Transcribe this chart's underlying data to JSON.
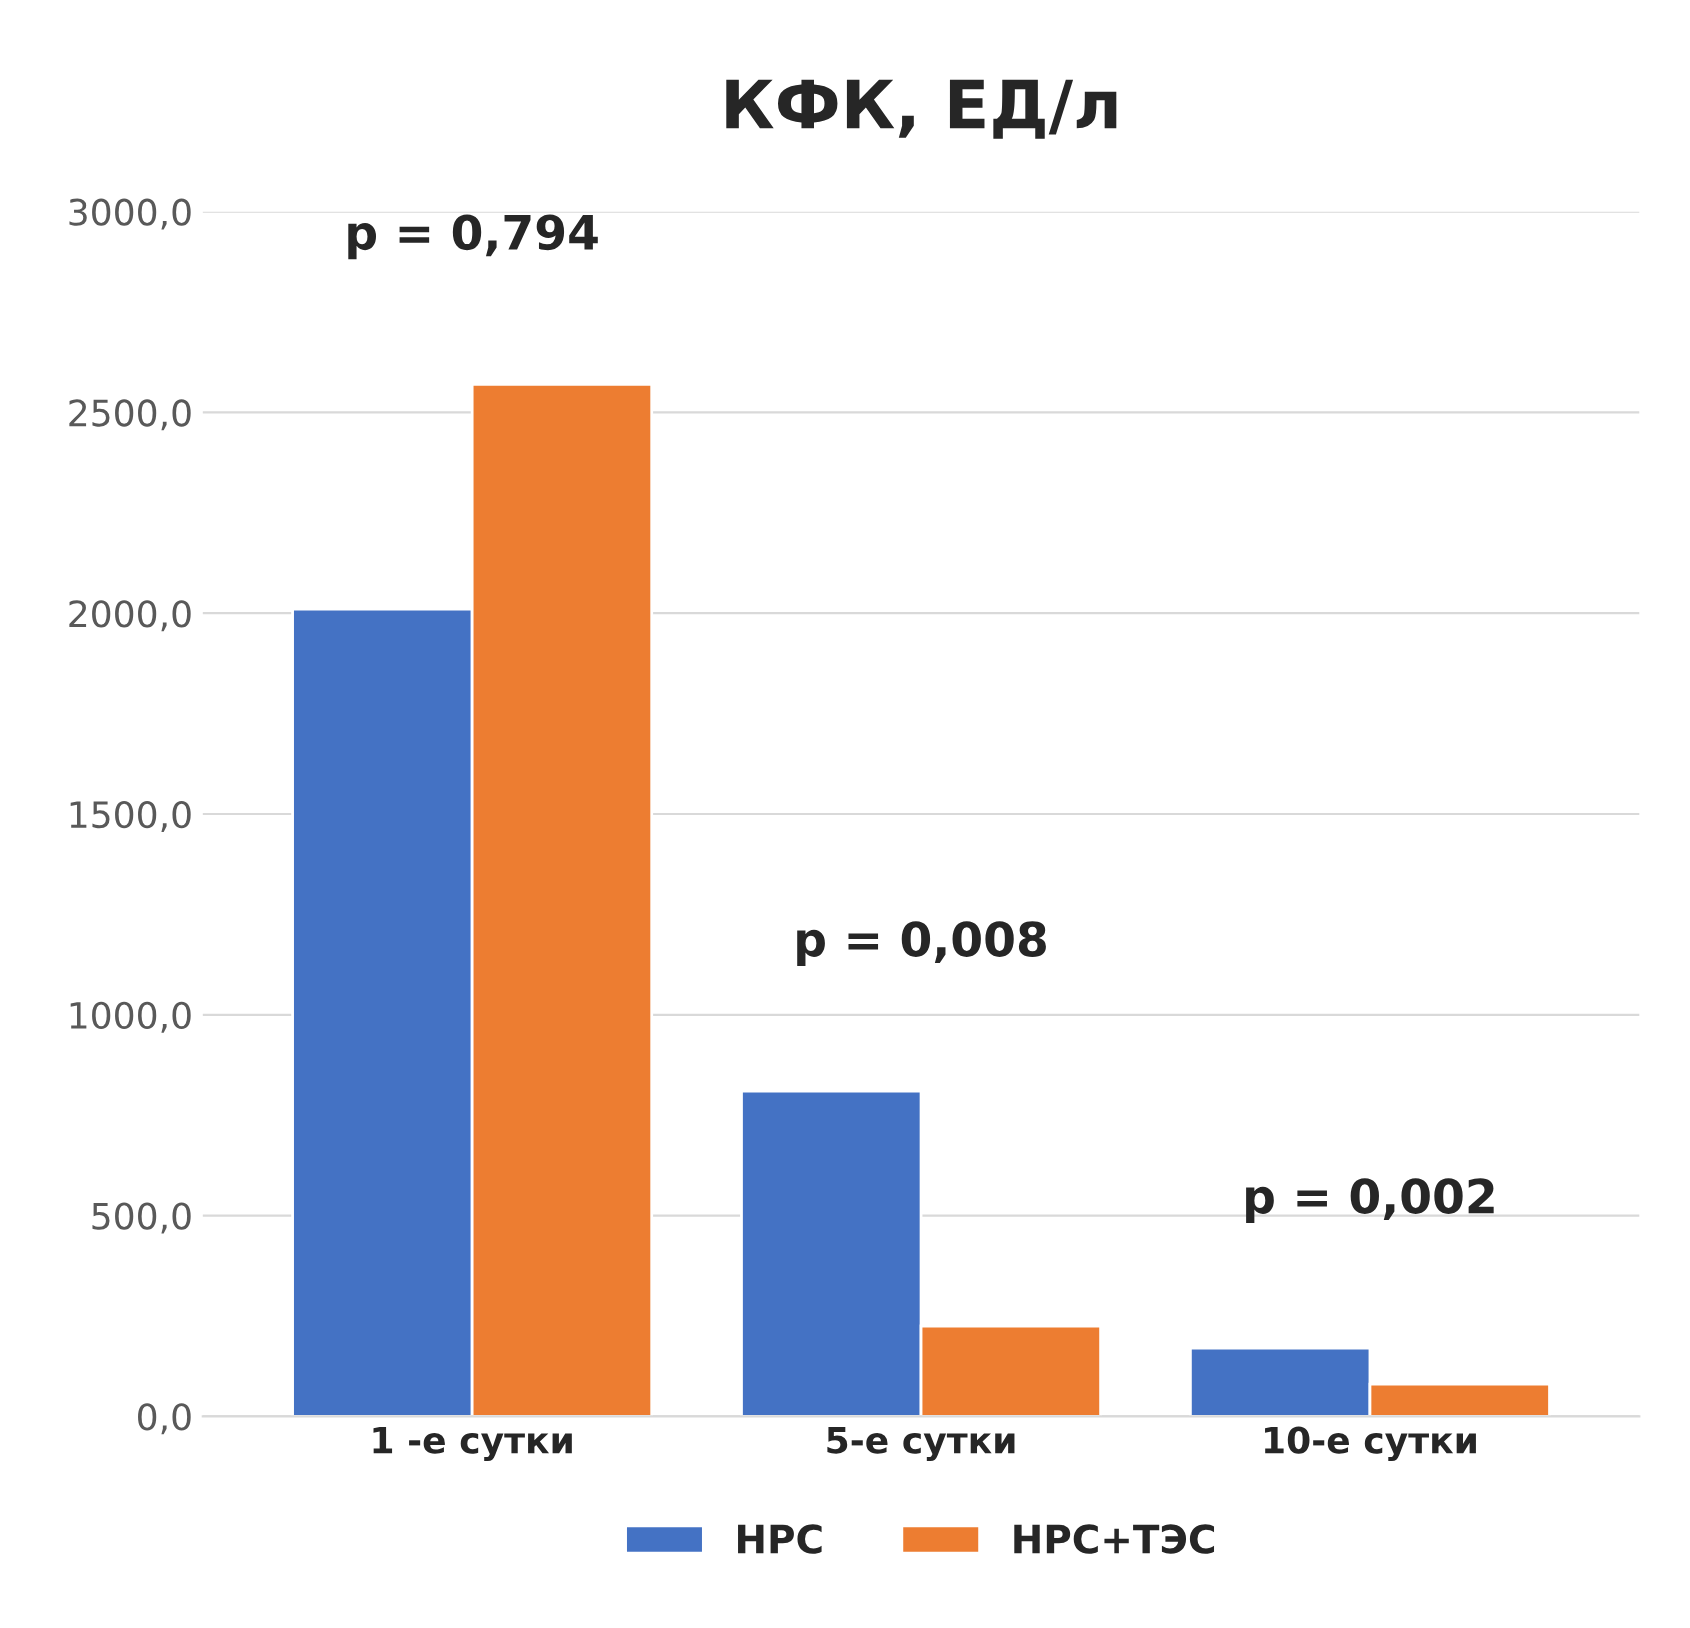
{
  "chart_data": {
    "type": "bar",
    "title": "КФК, ЕД/л",
    "categories": [
      "1 -е сутки",
      "5-е сутки",
      "10-е сутки"
    ],
    "series": [
      {
        "name": "НРС",
        "color": "#4472c4",
        "values": [
          2010,
          810,
          170
        ]
      },
      {
        "name": "НРС+ТЭС",
        "color": "#ed7d31",
        "values": [
          2570,
          225,
          80
        ]
      }
    ],
    "ylim": [
      0,
      3000
    ],
    "yticks": [
      {
        "value": 0,
        "label": "0,0"
      },
      {
        "value": 500,
        "label": "500,0"
      },
      {
        "value": 1000,
        "label": "1000,0"
      },
      {
        "value": 1500,
        "label": "1500,0"
      },
      {
        "value": 2000,
        "label": "2000,0"
      },
      {
        "value": 2500,
        "label": "2500,0"
      },
      {
        "value": 3000,
        "label": "3000,0"
      }
    ],
    "grid": "y",
    "legend": "bottom",
    "annotations": [
      "p = 0,794",
      "p = 0,008",
      "p = 0,002"
    ]
  }
}
